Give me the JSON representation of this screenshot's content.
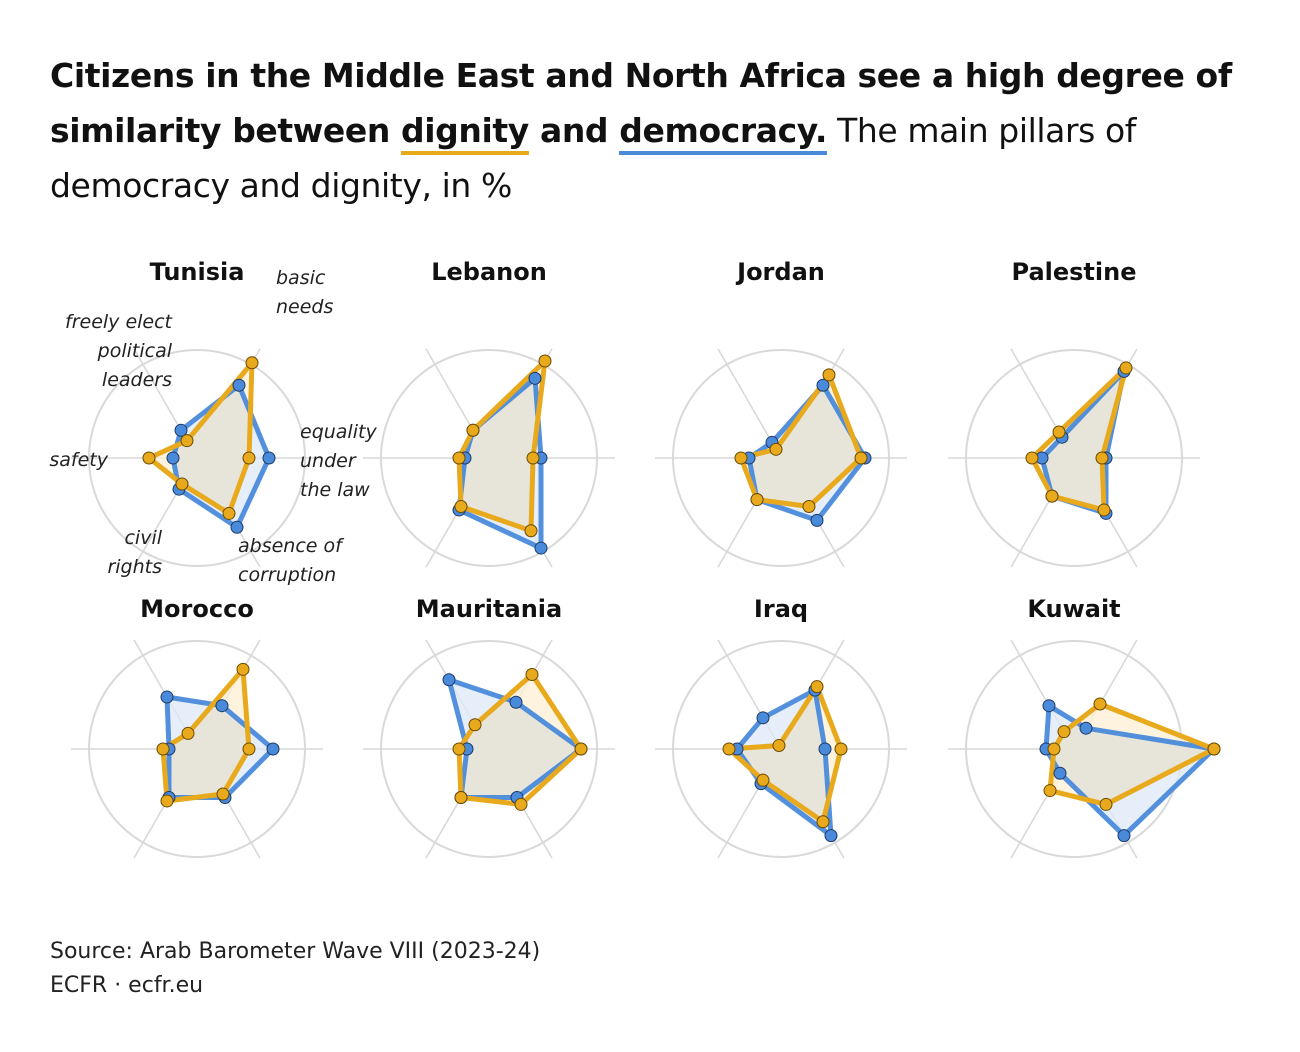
{
  "headline": {
    "part1": "Citizens in the Middle East and North Africa see a high degree of similarity between ",
    "dignity": "dignity",
    "and": " and ",
    "democracy": "democracy.",
    "subtitle": " The main pillars of democracy and dignity, in %"
  },
  "colors": {
    "democracy": "#4A8ADB",
    "dignity": "#E8A91C",
    "democracy_fill": "#DCE8F7",
    "dignity_fill": "#FCEFD4",
    "overlap_fill": "#E7E5DA",
    "grid": "#D9D9D9"
  },
  "axis_labels": [
    [
      "basic",
      "needs"
    ],
    [
      "equality",
      "under",
      "the law"
    ],
    [
      "absence of",
      "corruption"
    ],
    [
      "civil",
      "rights"
    ],
    [
      "safety"
    ],
    [
      "freely elect",
      "political",
      "leaders"
    ]
  ],
  "chart_data": {
    "type": "radar",
    "unit": "%",
    "rmax": 100,
    "axes": [
      "basic needs",
      "equality under the law",
      "absence of corruption",
      "civil rights",
      "safety",
      "freely elect political leaders"
    ],
    "series_names": [
      "democracy",
      "dignity"
    ],
    "panels": [
      {
        "country": "Tunisia",
        "democracy": [
          42,
          36,
          40,
          18,
          12,
          16
        ],
        "dignity": [
          55,
          26,
          32,
          15,
          24,
          10
        ]
      },
      {
        "country": "Lebanon",
        "democracy": [
          46,
          26,
          52,
          30,
          12,
          16
        ],
        "dignity": [
          56,
          22,
          42,
          28,
          15,
          16
        ]
      },
      {
        "country": "Jordan",
        "democracy": [
          42,
          42,
          36,
          24,
          16,
          9
        ],
        "dignity": [
          48,
          40,
          28,
          24,
          20,
          5
        ]
      },
      {
        "country": "Palestine",
        "democracy": [
          50,
          16,
          32,
          22,
          16,
          12
        ],
        "dignity": [
          52,
          14,
          30,
          22,
          21,
          15
        ]
      },
      {
        "country": "Morocco",
        "democracy": [
          25,
          38,
          28,
          28,
          14,
          30
        ],
        "dignity": [
          46,
          26,
          26,
          30,
          17,
          9
        ]
      },
      {
        "country": "Mauritania",
        "democracy": [
          27,
          46,
          28,
          28,
          11,
          40
        ],
        "dignity": [
          43,
          46,
          32,
          28,
          15,
          14
        ]
      },
      {
        "country": "Iraq",
        "democracy": [
          34,
          22,
          50,
          20,
          22,
          18
        ],
        "dignity": [
          36,
          30,
          42,
          18,
          26,
          2
        ]
      },
      {
        "country": "Kuwait",
        "democracy": [
          12,
          70,
          50,
          14,
          14,
          25
        ],
        "dignity": [
          26,
          70,
          32,
          24,
          10,
          10
        ]
      }
    ]
  },
  "footer": {
    "source": "Source: Arab Barometer Wave VIII (2023-24)",
    "credit": "ECFR · ecfr.eu"
  }
}
